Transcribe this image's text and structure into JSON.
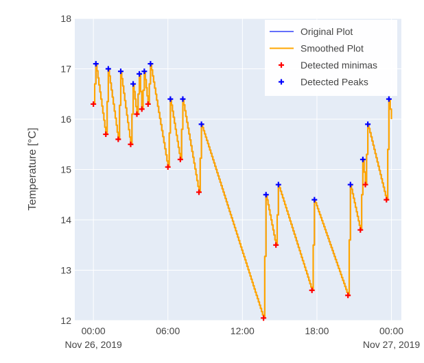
{
  "chart_data": {
    "type": "line",
    "title": "",
    "xlabel": "",
    "ylabel": "Temperature [°C]",
    "x_unit": "hours from 2019-11-26 00:00",
    "xlim": [
      -1.5,
      24.8
    ],
    "ylim": [
      12,
      18
    ],
    "x_ticks": [
      {
        "value": 0,
        "label": "00:00",
        "sublabel": "Nov 26, 2019"
      },
      {
        "value": 6,
        "label": "06:00",
        "sublabel": ""
      },
      {
        "value": 12,
        "label": "12:00",
        "sublabel": ""
      },
      {
        "value": 18,
        "label": "18:00",
        "sublabel": ""
      },
      {
        "value": 24,
        "label": "00:00",
        "sublabel": "Nov 27, 2019"
      }
    ],
    "y_ticks": [
      12,
      13,
      14,
      15,
      16,
      17,
      18
    ],
    "grid": true,
    "legend_position": "top-right",
    "series": [
      {
        "name": "Original Plot",
        "color": "#636efa",
        "points": [
          [
            0.0,
            16.3
          ],
          [
            0.2,
            17.1
          ],
          [
            1.0,
            15.7
          ],
          [
            1.2,
            17.0
          ],
          [
            2.0,
            15.6
          ],
          [
            2.2,
            16.95
          ],
          [
            3.0,
            15.5
          ],
          [
            3.2,
            16.7
          ],
          [
            3.5,
            16.1
          ],
          [
            3.7,
            16.9
          ],
          [
            3.9,
            16.2
          ],
          [
            4.1,
            16.95
          ],
          [
            4.4,
            16.3
          ],
          [
            4.6,
            17.1
          ],
          [
            6.0,
            15.05
          ],
          [
            6.2,
            16.4
          ],
          [
            7.0,
            15.2
          ],
          [
            7.2,
            16.4
          ],
          [
            8.5,
            14.55
          ],
          [
            8.7,
            15.9
          ],
          [
            13.7,
            12.05
          ],
          [
            13.9,
            14.5
          ],
          [
            14.7,
            13.5
          ],
          [
            14.9,
            14.7
          ],
          [
            17.6,
            12.6
          ],
          [
            17.8,
            14.4
          ],
          [
            20.5,
            12.5
          ],
          [
            20.7,
            14.7
          ],
          [
            21.5,
            13.8
          ],
          [
            21.7,
            15.2
          ],
          [
            21.9,
            14.7
          ],
          [
            22.1,
            15.9
          ],
          [
            23.6,
            14.4
          ],
          [
            23.8,
            16.4
          ],
          [
            24.0,
            16.0
          ]
        ]
      },
      {
        "name": "Smoothed Plot",
        "color": "#ffa500",
        "points": [
          [
            0.0,
            16.3
          ],
          [
            0.2,
            17.1
          ],
          [
            1.0,
            15.7
          ],
          [
            1.2,
            17.0
          ],
          [
            2.0,
            15.6
          ],
          [
            2.2,
            16.95
          ],
          [
            3.0,
            15.5
          ],
          [
            3.2,
            16.7
          ],
          [
            3.5,
            16.1
          ],
          [
            3.7,
            16.9
          ],
          [
            3.9,
            16.2
          ],
          [
            4.1,
            16.95
          ],
          [
            4.4,
            16.3
          ],
          [
            4.6,
            17.1
          ],
          [
            6.0,
            15.05
          ],
          [
            6.2,
            16.4
          ],
          [
            7.0,
            15.2
          ],
          [
            7.2,
            16.4
          ],
          [
            8.5,
            14.55
          ],
          [
            8.7,
            15.9
          ],
          [
            13.7,
            12.05
          ],
          [
            13.9,
            14.5
          ],
          [
            14.7,
            13.5
          ],
          [
            14.9,
            14.7
          ],
          [
            17.6,
            12.6
          ],
          [
            17.8,
            14.4
          ],
          [
            20.5,
            12.5
          ],
          [
            20.7,
            14.7
          ],
          [
            21.5,
            13.8
          ],
          [
            21.7,
            15.2
          ],
          [
            21.9,
            14.7
          ],
          [
            22.1,
            15.9
          ],
          [
            23.6,
            14.4
          ],
          [
            23.8,
            16.4
          ],
          [
            24.0,
            16.0
          ]
        ]
      },
      {
        "name": "Detected minimas",
        "color": "#ff0000",
        "marker": "cross",
        "points": [
          [
            0.0,
            16.3
          ],
          [
            1.0,
            15.7
          ],
          [
            2.0,
            15.6
          ],
          [
            3.0,
            15.5
          ],
          [
            3.5,
            16.1
          ],
          [
            3.9,
            16.2
          ],
          [
            4.4,
            16.3
          ],
          [
            6.0,
            15.05
          ],
          [
            7.0,
            15.2
          ],
          [
            8.5,
            14.55
          ],
          [
            13.7,
            12.05
          ],
          [
            14.7,
            13.5
          ],
          [
            17.6,
            12.6
          ],
          [
            20.5,
            12.5
          ],
          [
            21.5,
            13.8
          ],
          [
            21.9,
            14.7
          ],
          [
            23.6,
            14.4
          ]
        ]
      },
      {
        "name": "Detected Peaks",
        "color": "#0000ff",
        "marker": "cross",
        "points": [
          [
            0.2,
            17.1
          ],
          [
            1.2,
            17.0
          ],
          [
            2.2,
            16.95
          ],
          [
            3.2,
            16.7
          ],
          [
            3.7,
            16.9
          ],
          [
            4.1,
            16.95
          ],
          [
            4.6,
            17.1
          ],
          [
            6.2,
            16.4
          ],
          [
            7.2,
            16.4
          ],
          [
            8.7,
            15.9
          ],
          [
            13.9,
            14.5
          ],
          [
            14.9,
            14.7
          ],
          [
            17.8,
            14.4
          ],
          [
            20.7,
            14.7
          ],
          [
            21.7,
            15.2
          ],
          [
            22.1,
            15.9
          ],
          [
            23.8,
            16.4
          ]
        ]
      }
    ]
  }
}
